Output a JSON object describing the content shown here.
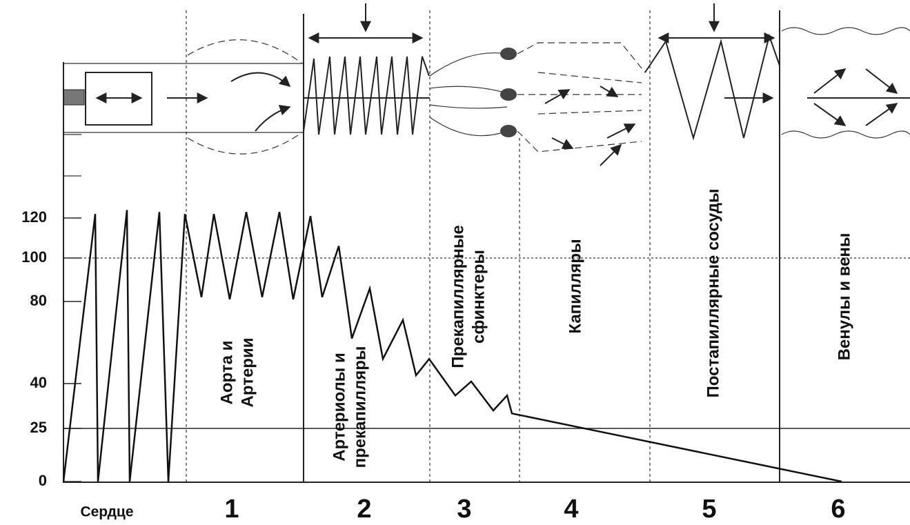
{
  "chart_data": {
    "type": "line",
    "values": [
      0,
      122,
      0,
      124,
      0,
      123,
      0,
      122,
      82,
      122,
      81,
      123,
      82,
      123,
      81,
      121,
      82,
      106,
      62,
      86,
      52,
      71,
      44,
      52,
      36,
      41,
      31,
      36,
      30,
      0
    ],
    "color": "#111111",
    "yticks": [
      0,
      25,
      40,
      80,
      100,
      120
    ],
    "heart_label": "Сердце",
    "regions": [
      {
        "lines": [
          "Аорта и",
          "Артерии"
        ],
        "number": "1"
      },
      {
        "lines": [
          "Артериолы и",
          "прекапилляры"
        ],
        "number": "2"
      },
      {
        "lines": [
          "Прекапиллярные",
          "сфинктеры"
        ],
        "number": "3"
      },
      {
        "lines": [
          "Капилляры"
        ],
        "number": "4"
      },
      {
        "lines": [
          "Постапиллярные сосуды"
        ],
        "number": "5"
      },
      {
        "lines": [
          "Венулы и вены"
        ],
        "number": "6"
      }
    ]
  }
}
